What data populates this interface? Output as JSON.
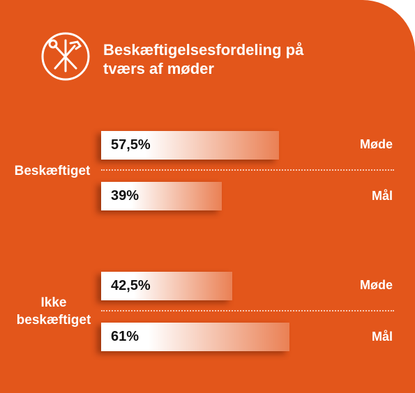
{
  "chart_data": {
    "type": "bar",
    "orientation": "horizontal",
    "title": "Beskæftigelsesfordeling på tværs af møder",
    "categories": [
      "Beskæftiget",
      "Ikke beskæftiget"
    ],
    "series": [
      {
        "name": "Møde",
        "color": "#ffffff",
        "values": [
          57.5,
          42.5
        ],
        "value_labels": [
          "57,5%",
          "42,5%"
        ]
      },
      {
        "name": "Mål",
        "color": "#ffffff",
        "values": [
          39,
          61
        ],
        "value_labels": [
          "39%",
          "61%"
        ]
      }
    ],
    "background": "#e3561b"
  }
}
